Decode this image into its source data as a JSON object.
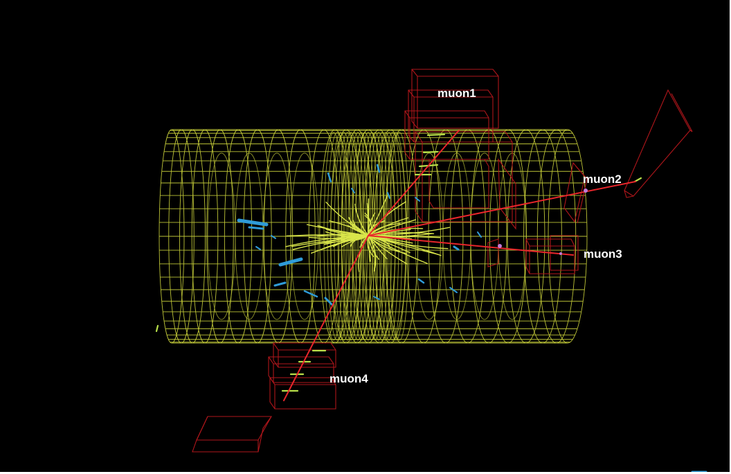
{
  "event_display": {
    "labels": {
      "muon1": "muon1",
      "muon2": "muon2",
      "muon3": "muon3",
      "muon4": "muon4"
    },
    "colors": {
      "background": "#000000",
      "detector_wireframe": "#c8cf3a",
      "muon_track": "#e8262b",
      "muon_chamber": "#b0161b",
      "calorimeter_deposit": "#2f9bd8",
      "inner_tracks": "#d9e54a",
      "label": "#ffffff"
    }
  }
}
